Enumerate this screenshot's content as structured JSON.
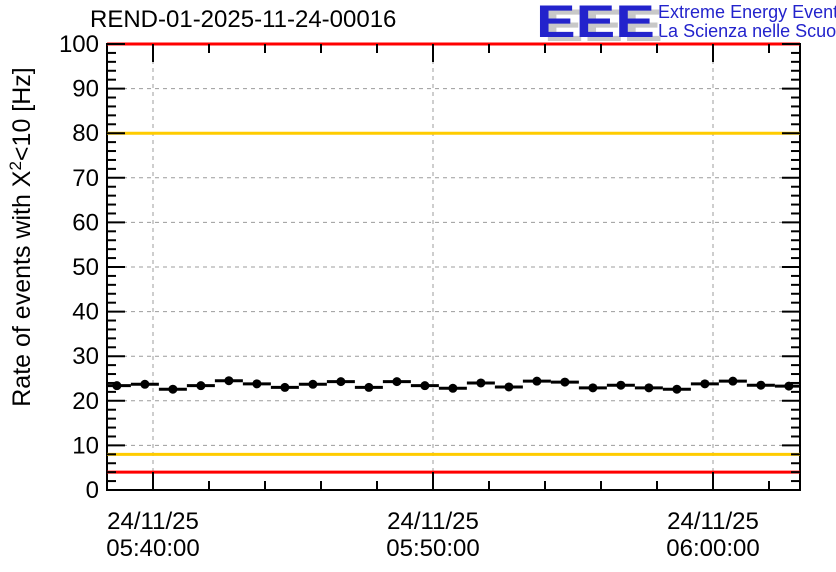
{
  "logo": {
    "letters": "EEE",
    "line1": "Extreme Energy Events",
    "line2": "La Scienza nelle Scuole",
    "blue": "#2323cc",
    "shadow": "#c8c8c8"
  },
  "chart_data": {
    "type": "scatter",
    "title": "REND-01-2025-11-24-00016",
    "ylabel": {
      "pre": "Rate of events with X",
      "sup": "2",
      "post": "<10 [Hz]"
    },
    "xlabel": "",
    "ylim": [
      0,
      100
    ],
    "y_major_step": 10,
    "y_minor_step": 2,
    "y_tick_labels": [
      "0",
      "10",
      "20",
      "30",
      "40",
      "50",
      "60",
      "70",
      "80",
      "90",
      "100"
    ],
    "x_axis": {
      "unit": "minutes relative to 05:40:00",
      "t_min": -1.64,
      "t_max": 23.11,
      "major_ticks": [
        {
          "t": 0,
          "date": "24/11/25",
          "time": "05:40:00"
        },
        {
          "t": 10,
          "date": "24/11/25",
          "time": "05:50:00"
        },
        {
          "t": 20,
          "date": "24/11/25",
          "time": "06:00:00"
        }
      ],
      "minor_tick_ts": [
        2,
        4,
        6,
        8,
        12,
        14,
        16,
        18,
        22
      ]
    },
    "grid": {
      "on": true,
      "color": "#9c9c9c",
      "horizontal_values": [
        10,
        20,
        30,
        40,
        50,
        60,
        70,
        80,
        90
      ],
      "vertical_at_major_ticks": true
    },
    "threshold_lines": [
      {
        "value": 100,
        "color": "#ff0000"
      },
      {
        "value": 80,
        "color": "#ffcc00"
      },
      {
        "value": 8,
        "color": "#ffcc00"
      },
      {
        "value": 4,
        "color": "#ff0000"
      }
    ],
    "series": [
      {
        "name": "event-rate",
        "marker": "filled-circle",
        "color": "#000000",
        "bin_width_min": 1,
        "t_start": -1.29,
        "t_step": 1,
        "values": [
          23.4,
          23.7,
          22.6,
          23.4,
          24.5,
          23.8,
          23.0,
          23.7,
          24.3,
          23.0,
          24.3,
          23.4,
          22.8,
          24.0,
          23.1,
          24.4,
          24.2,
          22.9,
          23.5,
          22.9,
          22.6,
          23.8,
          24.4,
          23.5,
          23.3
        ]
      }
    ],
    "legend": {
      "visible": false
    }
  }
}
